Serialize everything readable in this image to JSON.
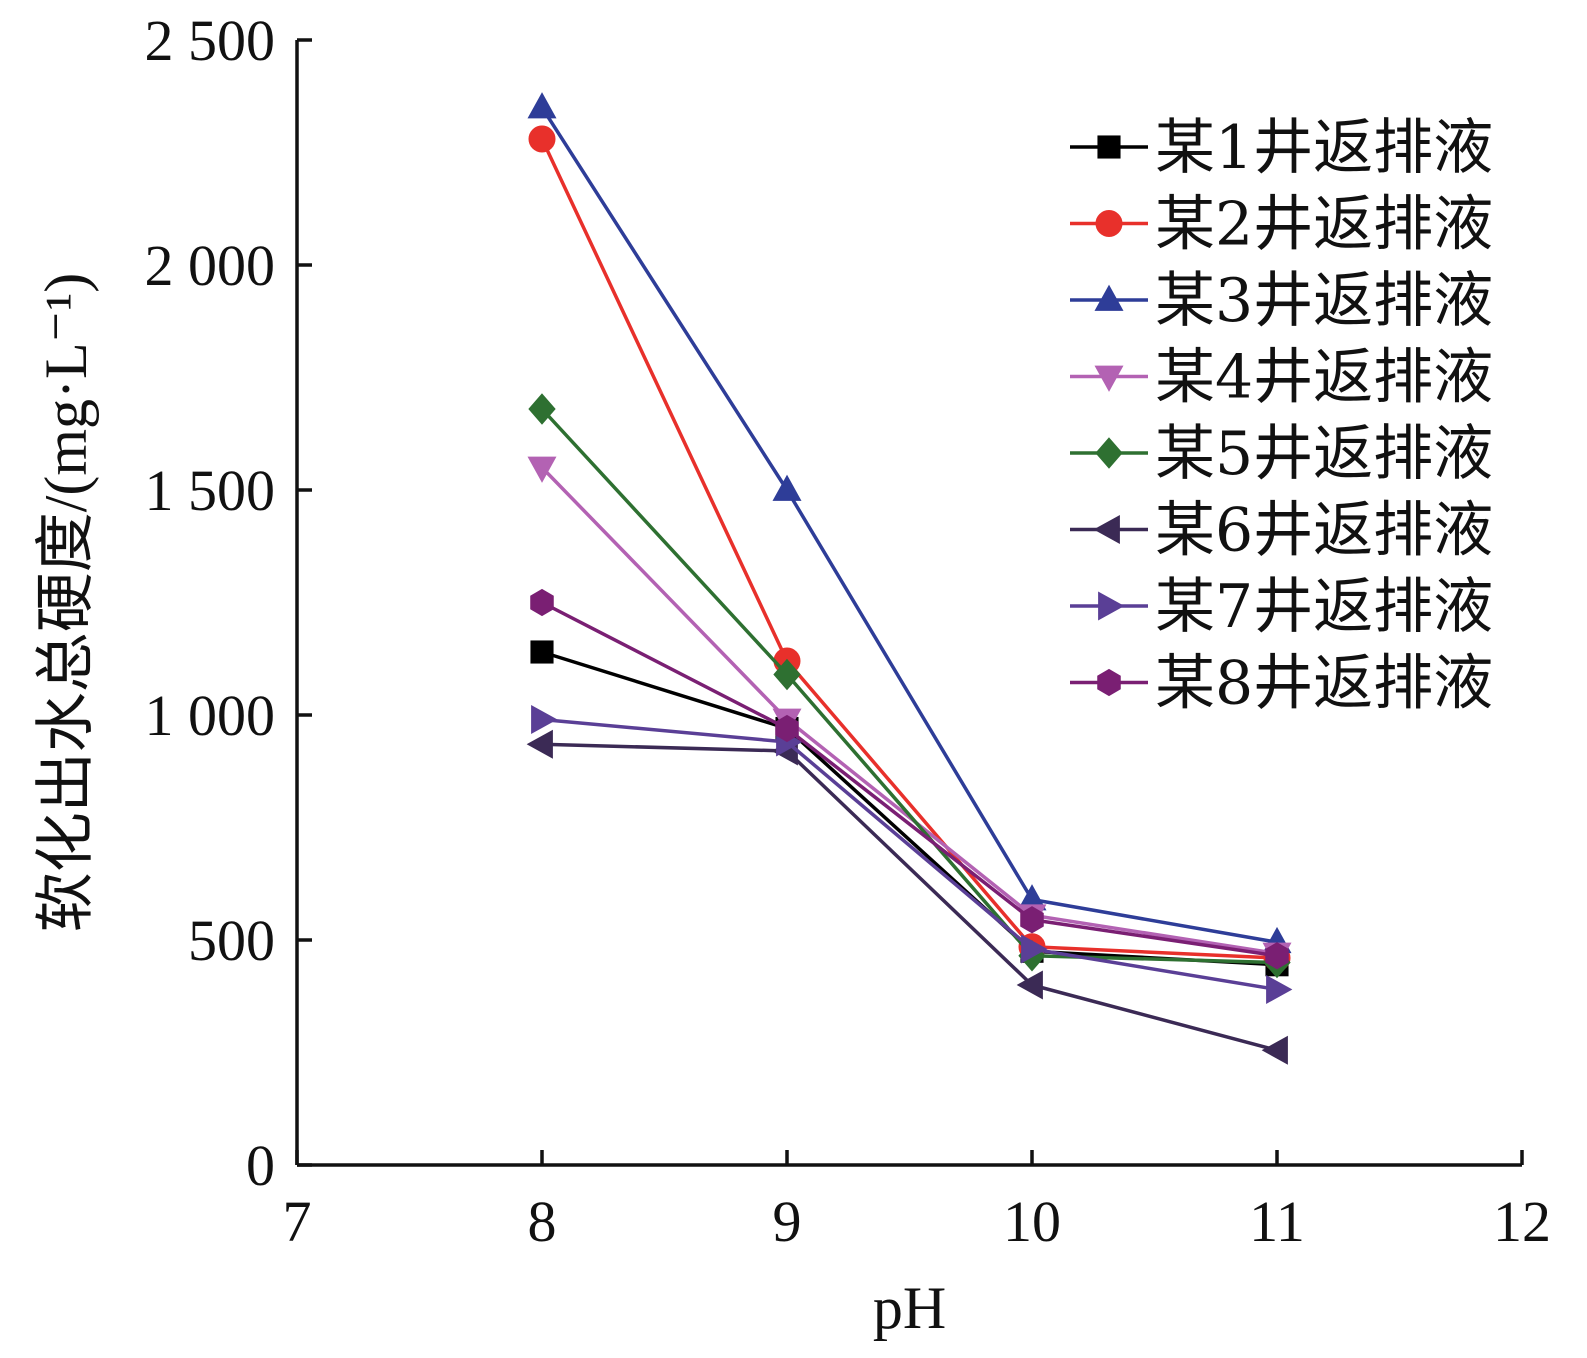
{
  "chart_data": {
    "type": "line",
    "xlabel": "pH",
    "ylabel": "软化出水总硬度/(mg·L⁻¹)",
    "xlim": [
      7,
      12
    ],
    "ylim": [
      0,
      2500
    ],
    "x_ticks": [
      "7",
      "8",
      "9",
      "10",
      "11",
      "12"
    ],
    "y_ticks": [
      "0",
      "500",
      "1 000",
      "1 500",
      "2 000",
      "2 500"
    ],
    "x": [
      8,
      9,
      10,
      11
    ],
    "legend_position": "top-right",
    "grid": false,
    "series": [
      {
        "name": "某1井返排液",
        "color": "#000000",
        "marker": "square",
        "values": [
          1140,
          970,
          475,
          445
        ]
      },
      {
        "name": "某2井返排液",
        "color": "#e8302b",
        "marker": "circle",
        "values": [
          2280,
          1120,
          485,
          460
        ]
      },
      {
        "name": "某3井返排液",
        "color": "#2e3d98",
        "marker": "triangle-up",
        "values": [
          2350,
          1500,
          590,
          495
        ]
      },
      {
        "name": "某4井返排液",
        "color": "#b362b3",
        "marker": "triangle-down",
        "values": [
          1550,
          990,
          555,
          470
        ]
      },
      {
        "name": "某5井返排液",
        "color": "#2e7031",
        "marker": "diamond",
        "values": [
          1680,
          1090,
          465,
          450
        ]
      },
      {
        "name": "某6井返排液",
        "color": "#3b2a55",
        "marker": "triangle-left",
        "values": [
          935,
          920,
          400,
          255
        ]
      },
      {
        "name": "某7井返排液",
        "color": "#5a3f96",
        "marker": "triangle-right",
        "values": [
          990,
          940,
          480,
          390
        ]
      },
      {
        "name": "某8井返排液",
        "color": "#7a1f73",
        "marker": "hexagon",
        "values": [
          1250,
          970,
          545,
          465
        ]
      }
    ]
  }
}
